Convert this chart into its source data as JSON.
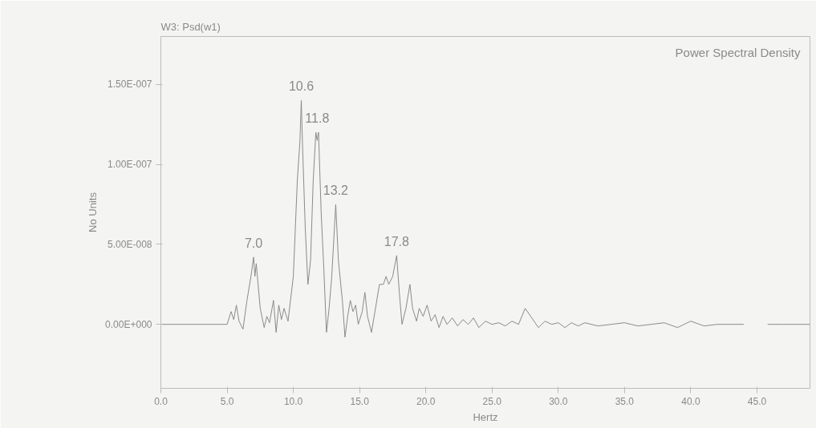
{
  "chart_data": {
    "type": "line",
    "title": "W3: Psd(w1)",
    "subtitle": "Power Spectral Density",
    "xlabel": "Hertz",
    "ylabel": "No Units",
    "x": [
      0,
      5.0,
      5.3,
      5.5,
      5.7,
      5.9,
      6.2,
      6.5,
      6.8,
      7.0,
      7.1,
      7.2,
      7.5,
      7.8,
      8.0,
      8.2,
      8.5,
      8.7,
      8.9,
      9.1,
      9.3,
      9.6,
      10.0,
      10.3,
      10.5,
      10.6,
      10.7,
      10.9,
      11.1,
      11.3,
      11.5,
      11.7,
      11.8,
      11.9,
      12.1,
      12.3,
      12.5,
      12.7,
      12.9,
      13.2,
      13.4,
      13.7,
      13.9,
      14.1,
      14.3,
      14.5,
      14.7,
      14.9,
      15.2,
      15.4,
      15.6,
      15.9,
      16.2,
      16.5,
      16.8,
      17.0,
      17.2,
      17.5,
      17.8,
      18.0,
      18.2,
      18.5,
      18.8,
      19.0,
      19.3,
      19.5,
      19.8,
      20.1,
      20.4,
      20.7,
      21.0,
      21.3,
      21.6,
      22.0,
      22.4,
      22.8,
      23.2,
      23.6,
      24.0,
      24.5,
      25.0,
      25.5,
      26.0,
      26.5,
      27.0,
      27.5,
      28.0,
      28.5,
      29.0,
      29.5,
      30.0,
      30.5,
      31.0,
      31.5,
      32.0,
      33.0,
      34.0,
      35.0,
      36.0,
      37.0,
      38.0,
      39.0,
      40.0,
      41.0,
      42.0,
      43.0,
      44.0,
      44.6,
      45.8,
      47.0,
      49.0
    ],
    "values": [
      0,
      0,
      8e-09,
      3e-09,
      1.2e-08,
      2e-09,
      -3e-09,
      1.5e-08,
      3e-08,
      4.2e-08,
      3e-08,
      3.8e-08,
      1e-08,
      -2e-09,
      5e-09,
      1e-09,
      1.5e-08,
      -5e-09,
      1.2e-08,
      3e-09,
      1e-08,
      2e-09,
      3e-08,
      9e-08,
      1.15e-07,
      1.4e-07,
      1.1e-07,
      6e-08,
      2.5e-08,
      4e-08,
      9e-08,
      1.2e-07,
      1.15e-07,
      1.2e-07,
      7e-08,
      3.5e-08,
      -5e-09,
      1e-08,
      3e-08,
      7.5e-08,
      4e-08,
      1.5e-08,
      -8e-09,
      5e-09,
      1.5e-08,
      8e-09,
      1.2e-08,
      0,
      8e-09,
      2e-08,
      5e-09,
      -5e-09,
      1e-08,
      2.5e-08,
      2.5e-08,
      3e-08,
      2.5e-08,
      3e-08,
      4.3e-08,
      2e-08,
      0,
      1e-08,
      2.5e-08,
      1e-08,
      2e-09,
      1e-08,
      5e-09,
      1.2e-08,
      2e-09,
      6e-09,
      -2e-09,
      5e-09,
      0,
      4e-09,
      -1e-09,
      3e-09,
      0,
      4e-09,
      -2e-09,
      2e-09,
      0,
      1e-09,
      -1e-09,
      2e-09,
      0,
      1e-08,
      4e-09,
      -2e-09,
      2e-09,
      0,
      1e-09,
      -2e-09,
      1e-09,
      -1e-09,
      1e-09,
      -1e-09,
      0,
      1e-09,
      -1e-09,
      0,
      1e-09,
      -2e-09,
      2e-09,
      -1e-09,
      0,
      0,
      0,
      null,
      0,
      0,
      0
    ],
    "color": "#8a8a8a",
    "xlim": [
      0,
      49
    ],
    "xticks": [
      {
        "value": 0,
        "label": "0.0"
      },
      {
        "value": 5,
        "label": "5.0"
      },
      {
        "value": 10,
        "label": "10.0"
      },
      {
        "value": 15,
        "label": "15.0"
      },
      {
        "value": 20,
        "label": "20.0"
      },
      {
        "value": 25,
        "label": "25.0"
      },
      {
        "value": 30,
        "label": "30.0"
      },
      {
        "value": 35,
        "label": "35.0"
      },
      {
        "value": 40,
        "label": "40.0"
      },
      {
        "value": 45,
        "label": "45.0"
      }
    ],
    "ylim": [
      -4e-08,
      1.8e-07
    ],
    "yticks": [
      {
        "value": 0,
        "label": "0.00E+000"
      },
      {
        "value": 5e-08,
        "label": "5.00E-008"
      },
      {
        "value": 1e-07,
        "label": "1.00E-007"
      },
      {
        "value": 1.5e-07,
        "label": "1.50E-007"
      }
    ],
    "annotations": [
      {
        "text": "7.0",
        "x": 7.0,
        "y": 4.2e-08
      },
      {
        "text": "10.6",
        "x": 10.6,
        "y": 1.4e-07
      },
      {
        "text": "11.8",
        "x": 11.8,
        "y": 1.2e-07
      },
      {
        "text": "13.2",
        "x": 13.2,
        "y": 7.5e-08
      },
      {
        "text": "17.8",
        "x": 17.8,
        "y": 4.3e-08
      }
    ],
    "grid": false,
    "marker": "none",
    "line_style": "solid"
  }
}
